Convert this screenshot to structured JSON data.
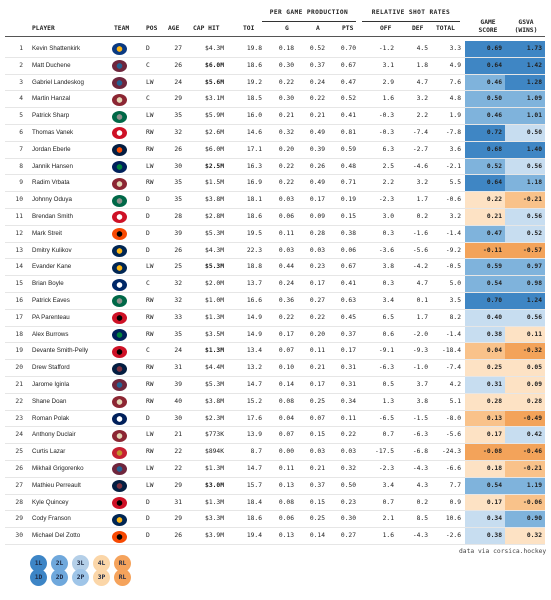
{
  "header": {
    "group_per_game": "PER GAME PRODUCTION",
    "group_shot_rates": "RELATIVE SHOT RATES",
    "col_player": "PLAYER",
    "col_team": "TEAM",
    "col_pos": "POS",
    "col_age": "AGE",
    "col_cap": "CAP HIT",
    "col_toi": "TOI",
    "col_g": "G",
    "col_a": "A",
    "col_pts": "PTS",
    "col_off": "OFF",
    "col_def": "DEF",
    "col_total": "TOTAL",
    "col_gs_1": "GAME",
    "col_gs_2": "SCORE",
    "col_gsva_1": "GSVA",
    "col_gsva_2": "(WINS)"
  },
  "rows": [
    {
      "rank": "1",
      "name": "Kevin Shattenkirk",
      "team_icon": "blues-logo",
      "pos": "D",
      "age": "27",
      "cap": "$4.3M",
      "cap_bold": false,
      "toi": "19.8",
      "g": "0.18",
      "a": "0.52",
      "pts": "0.70",
      "off": "-1.2",
      "def": "4.5",
      "tot": "3.3",
      "gs": "0.69",
      "gsva": "1.73"
    },
    {
      "rank": "2",
      "name": "Matt Duchene",
      "team_icon": "avalanche-logo",
      "pos": "C",
      "age": "26",
      "cap": "$6.0M",
      "cap_bold": true,
      "toi": "18.6",
      "g": "0.30",
      "a": "0.37",
      "pts": "0.67",
      "off": "3.1",
      "def": "1.8",
      "tot": "4.9",
      "gs": "0.64",
      "gsva": "1.42"
    },
    {
      "rank": "3",
      "name": "Gabriel Landeskog",
      "team_icon": "avalanche-logo",
      "pos": "LW",
      "age": "24",
      "cap": "$5.6M",
      "cap_bold": true,
      "toi": "19.2",
      "g": "0.22",
      "a": "0.24",
      "pts": "0.47",
      "off": "2.9",
      "def": "4.7",
      "tot": "7.6",
      "gs": "0.46",
      "gsva": "1.28"
    },
    {
      "rank": "4",
      "name": "Martin Hanzal",
      "team_icon": "coyotes-logo",
      "pos": "C",
      "age": "29",
      "cap": "$3.1M",
      "cap_bold": false,
      "toi": "18.5",
      "g": "0.30",
      "a": "0.22",
      "pts": "0.52",
      "off": "1.6",
      "def": "3.2",
      "tot": "4.8",
      "gs": "0.50",
      "gsva": "1.09"
    },
    {
      "rank": "5",
      "name": "Patrick Sharp",
      "team_icon": "stars-logo",
      "pos": "LW",
      "age": "35",
      "cap": "$5.9M",
      "cap_bold": false,
      "toi": "16.0",
      "g": "0.21",
      "a": "0.21",
      "pts": "0.41",
      "off": "-0.3",
      "def": "2.2",
      "tot": "1.9",
      "gs": "0.46",
      "gsva": "1.01"
    },
    {
      "rank": "6",
      "name": "Thomas Vanek",
      "team_icon": "redwings-logo",
      "pos": "RW",
      "age": "32",
      "cap": "$2.6M",
      "cap_bold": false,
      "toi": "14.6",
      "g": "0.32",
      "a": "0.49",
      "pts": "0.81",
      "off": "-0.3",
      "def": "-7.4",
      "tot": "-7.8",
      "gs": "0.72",
      "gsva": "0.50"
    },
    {
      "rank": "7",
      "name": "Jordan Eberle",
      "team_icon": "oilers-logo",
      "pos": "RW",
      "age": "26",
      "cap": "$6.0M",
      "cap_bold": false,
      "toi": "17.1",
      "g": "0.20",
      "a": "0.39",
      "pts": "0.59",
      "off": "6.3",
      "def": "-2.7",
      "tot": "3.6",
      "gs": "0.68",
      "gsva": "1.40"
    },
    {
      "rank": "8",
      "name": "Jannik Hansen",
      "team_icon": "canucks-logo",
      "pos": "LW",
      "age": "30",
      "cap": "$2.5M",
      "cap_bold": true,
      "toi": "16.3",
      "g": "0.22",
      "a": "0.26",
      "pts": "0.48",
      "off": "2.5",
      "def": "-4.6",
      "tot": "-2.1",
      "gs": "0.52",
      "gsva": "0.56"
    },
    {
      "rank": "9",
      "name": "Radim Vrbata",
      "team_icon": "coyotes-logo",
      "pos": "RW",
      "age": "35",
      "cap": "$1.5M",
      "cap_bold": false,
      "toi": "16.9",
      "g": "0.22",
      "a": "0.49",
      "pts": "0.71",
      "off": "2.2",
      "def": "3.2",
      "tot": "5.5",
      "gs": "0.64",
      "gsva": "1.18"
    },
    {
      "rank": "10",
      "name": "Johnny Oduya",
      "team_icon": "stars-logo",
      "pos": "D",
      "age": "35",
      "cap": "$3.8M",
      "cap_bold": false,
      "toi": "18.1",
      "g": "0.03",
      "a": "0.17",
      "pts": "0.19",
      "off": "-2.3",
      "def": "1.7",
      "tot": "-0.6",
      "gs": "0.22",
      "gsva": "-0.21"
    },
    {
      "rank": "11",
      "name": "Brendan Smith",
      "team_icon": "redwings-logo",
      "pos": "D",
      "age": "28",
      "cap": "$2.8M",
      "cap_bold": false,
      "toi": "18.6",
      "g": "0.06",
      "a": "0.09",
      "pts": "0.15",
      "off": "3.0",
      "def": "0.2",
      "tot": "3.2",
      "gs": "0.21",
      "gsva": "0.56"
    },
    {
      "rank": "12",
      "name": "Mark Streit",
      "team_icon": "flyers-logo",
      "pos": "D",
      "age": "39",
      "cap": "$5.3M",
      "cap_bold": false,
      "toi": "19.5",
      "g": "0.11",
      "a": "0.28",
      "pts": "0.38",
      "off": "0.3",
      "def": "-1.6",
      "tot": "-1.4",
      "gs": "0.47",
      "gsva": "0.52"
    },
    {
      "rank": "13",
      "name": "Dmitry Kulikov",
      "team_icon": "sabres-logo",
      "pos": "D",
      "age": "26",
      "cap": "$4.3M",
      "cap_bold": false,
      "toi": "22.3",
      "g": "0.03",
      "a": "0.03",
      "pts": "0.06",
      "off": "-3.6",
      "def": "-5.6",
      "tot": "-9.2",
      "gs": "-0.11",
      "gsva": "-0.57"
    },
    {
      "rank": "14",
      "name": "Evander Kane",
      "team_icon": "sabres-logo",
      "pos": "LW",
      "age": "25",
      "cap": "$5.3M",
      "cap_bold": true,
      "toi": "18.8",
      "g": "0.44",
      "a": "0.23",
      "pts": "0.67",
      "off": "3.8",
      "def": "-4.2",
      "tot": "-0.5",
      "gs": "0.59",
      "gsva": "0.97"
    },
    {
      "rank": "15",
      "name": "Brian Boyle",
      "team_icon": "lightning-logo",
      "pos": "C",
      "age": "32",
      "cap": "$2.0M",
      "cap_bold": false,
      "toi": "13.7",
      "g": "0.24",
      "a": "0.17",
      "pts": "0.41",
      "off": "0.3",
      "def": "4.7",
      "tot": "5.0",
      "gs": "0.54",
      "gsva": "0.98"
    },
    {
      "rank": "16",
      "name": "Patrick Eaves",
      "team_icon": "stars-logo",
      "pos": "RW",
      "age": "32",
      "cap": "$1.0M",
      "cap_bold": false,
      "toi": "16.6",
      "g": "0.36",
      "a": "0.27",
      "pts": "0.63",
      "off": "3.4",
      "def": "0.1",
      "tot": "3.5",
      "gs": "0.70",
      "gsva": "1.24"
    },
    {
      "rank": "17",
      "name": "PA Parenteau",
      "team_icon": "devils-logo",
      "pos": "RW",
      "age": "33",
      "cap": "$1.3M",
      "cap_bold": false,
      "toi": "14.9",
      "g": "0.22",
      "a": "0.22",
      "pts": "0.45",
      "off": "6.5",
      "def": "1.7",
      "tot": "8.2",
      "gs": "0.40",
      "gsva": "0.56"
    },
    {
      "rank": "18",
      "name": "Alex Burrows",
      "team_icon": "canucks-logo",
      "pos": "RW",
      "age": "35",
      "cap": "$3.5M",
      "cap_bold": false,
      "toi": "14.9",
      "g": "0.17",
      "a": "0.20",
      "pts": "0.37",
      "off": "0.6",
      "def": "-2.0",
      "tot": "-1.4",
      "gs": "0.38",
      "gsva": "0.11"
    },
    {
      "rank": "19",
      "name": "Devante Smith-Pelly",
      "team_icon": "devils-logo",
      "pos": "C",
      "age": "24",
      "cap": "$1.3M",
      "cap_bold": true,
      "toi": "13.4",
      "g": "0.07",
      "a": "0.11",
      "pts": "0.17",
      "off": "-9.1",
      "def": "-9.3",
      "tot": "-18.4",
      "gs": "0.04",
      "gsva": "-0.32"
    },
    {
      "rank": "20",
      "name": "Drew Stafford",
      "team_icon": "jets-logo",
      "pos": "RW",
      "age": "31",
      "cap": "$4.4M",
      "cap_bold": false,
      "toi": "13.2",
      "g": "0.10",
      "a": "0.21",
      "pts": "0.31",
      "off": "-6.3",
      "def": "-1.0",
      "tot": "-7.4",
      "gs": "0.25",
      "gsva": "0.05"
    },
    {
      "rank": "21",
      "name": "Jarome Iginla",
      "team_icon": "avalanche-logo",
      "pos": "RW",
      "age": "39",
      "cap": "$5.3M",
      "cap_bold": false,
      "toi": "14.7",
      "g": "0.14",
      "a": "0.17",
      "pts": "0.31",
      "off": "0.5",
      "def": "3.7",
      "tot": "4.2",
      "gs": "0.31",
      "gsva": "0.09"
    },
    {
      "rank": "22",
      "name": "Shane Doan",
      "team_icon": "coyotes-logo",
      "pos": "RW",
      "age": "40",
      "cap": "$3.8M",
      "cap_bold": false,
      "toi": "15.2",
      "g": "0.08",
      "a": "0.25",
      "pts": "0.34",
      "off": "1.3",
      "def": "3.8",
      "tot": "5.1",
      "gs": "0.28",
      "gsva": "0.28"
    },
    {
      "rank": "23",
      "name": "Roman Polak",
      "team_icon": "leafs-logo",
      "pos": "D",
      "age": "30",
      "cap": "$2.3M",
      "cap_bold": false,
      "toi": "17.6",
      "g": "0.04",
      "a": "0.07",
      "pts": "0.11",
      "off": "-6.5",
      "def": "-1.5",
      "tot": "-8.0",
      "gs": "0.13",
      "gsva": "-0.49"
    },
    {
      "rank": "24",
      "name": "Anthony Duclair",
      "team_icon": "coyotes-logo",
      "pos": "LW",
      "age": "21",
      "cap": "$773K",
      "cap_bold": false,
      "toi": "13.9",
      "g": "0.07",
      "a": "0.15",
      "pts": "0.22",
      "off": "0.7",
      "def": "-6.3",
      "tot": "-5.6",
      "gs": "0.17",
      "gsva": "0.42"
    },
    {
      "rank": "25",
      "name": "Curtis Lazar",
      "team_icon": "senators-logo",
      "pos": "RW",
      "age": "22",
      "cap": "$894K",
      "cap_bold": false,
      "toi": "8.7",
      "g": "0.00",
      "a": "0.03",
      "pts": "0.03",
      "off": "-17.5",
      "def": "-6.8",
      "tot": "-24.3",
      "gs": "-0.08",
      "gsva": "-0.46"
    },
    {
      "rank": "26",
      "name": "Mikhail Grigorenko",
      "team_icon": "avalanche-logo",
      "pos": "LW",
      "age": "22",
      "cap": "$1.3M",
      "cap_bold": false,
      "toi": "14.7",
      "g": "0.11",
      "a": "0.21",
      "pts": "0.32",
      "off": "-2.3",
      "def": "-4.3",
      "tot": "-6.6",
      "gs": "0.18",
      "gsva": "-0.21"
    },
    {
      "rank": "27",
      "name": "Mathieu Perreault",
      "team_icon": "jets-logo",
      "pos": "LW",
      "age": "29",
      "cap": "$3.0M",
      "cap_bold": true,
      "toi": "15.7",
      "g": "0.13",
      "a": "0.37",
      "pts": "0.50",
      "off": "3.4",
      "def": "4.3",
      "tot": "7.7",
      "gs": "0.54",
      "gsva": "1.19"
    },
    {
      "rank": "28",
      "name": "Kyle Quincey",
      "team_icon": "devils-logo",
      "pos": "D",
      "age": "31",
      "cap": "$1.3M",
      "cap_bold": false,
      "toi": "18.4",
      "g": "0.08",
      "a": "0.15",
      "pts": "0.23",
      "off": "0.7",
      "def": "0.2",
      "tot": "0.9",
      "gs": "0.17",
      "gsva": "-0.06"
    },
    {
      "rank": "29",
      "name": "Cody Franson",
      "team_icon": "sabres-logo",
      "pos": "D",
      "age": "29",
      "cap": "$3.3M",
      "cap_bold": false,
      "toi": "18.6",
      "g": "0.06",
      "a": "0.25",
      "pts": "0.30",
      "off": "2.1",
      "def": "8.5",
      "tot": "10.6",
      "gs": "0.34",
      "gsva": "0.90"
    },
    {
      "rank": "30",
      "name": "Michael Del Zotto",
      "team_icon": "flyers-logo",
      "pos": "D",
      "age": "26",
      "cap": "$3.9M",
      "cap_bold": false,
      "toi": "19.4",
      "g": "0.13",
      "a": "0.14",
      "pts": "0.27",
      "off": "1.6",
      "def": "-4.3",
      "tot": "-2.6",
      "gs": "0.38",
      "gsva": "0.32"
    }
  ],
  "credit": "data via corsica.hockey",
  "legend": {
    "top": [
      "1L",
      "2L",
      "3L",
      "4L",
      "RL"
    ],
    "bottom": [
      "1D",
      "2D",
      "2P",
      "3P",
      "RL"
    ],
    "top_colors": [
      "#3d85c6",
      "#6fa8dc",
      "#b4cfe8",
      "#fbd6a8",
      "#f5a35c"
    ],
    "bottom_colors": [
      "#3d85c6",
      "#6fa8dc",
      "#9fc5e8",
      "#fbd6a8",
      "#f5a35c"
    ]
  },
  "colors": {
    "pos_strong": "#3f86c4",
    "pos_mid": "#7fb3dc",
    "pos_light": "#c7ddf0",
    "neg_light": "#fde2c4",
    "neg_mid": "#f9c28a",
    "neg_strong": "#f3a35a"
  }
}
